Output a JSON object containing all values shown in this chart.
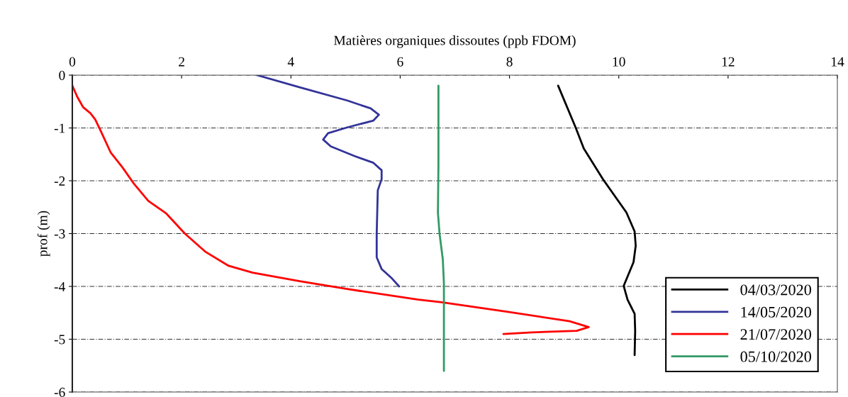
{
  "chart_data": {
    "type": "line",
    "xlabel": "Matières organiques dissoutes (ppb FDOM)",
    "ylabel": "prof (m)",
    "xlim": [
      0,
      14
    ],
    "xticks": [
      0,
      2,
      4,
      6,
      8,
      10,
      12,
      14
    ],
    "ylim": [
      -6,
      0
    ],
    "yticks": [
      -6,
      -5,
      -4,
      -3,
      -2,
      -1,
      0
    ],
    "grid": "y",
    "legend": "bottom right",
    "marker": "none",
    "line_style": "solid",
    "series": [
      {
        "name": "04/03/2020",
        "color": "#000000",
        "x": [
          8.89,
          9.21,
          9.36,
          9.71,
          10.14,
          10.29,
          10.31,
          10.27,
          10.09,
          10.16,
          10.29,
          10.3,
          10.29
        ],
        "values": [
          -0.2,
          -0.99,
          -1.39,
          -1.97,
          -2.6,
          -2.96,
          -3.23,
          -3.54,
          -3.99,
          -4.25,
          -4.52,
          -4.84,
          -5.3
        ]
      },
      {
        "name": "14/05/2020",
        "color": "#333399",
        "x": [
          3.38,
          4.16,
          5.03,
          5.46,
          5.61,
          5.51,
          5.03,
          4.68,
          4.59,
          4.73,
          5.16,
          5.51,
          5.66,
          5.66,
          5.59,
          5.57,
          5.57,
          5.66,
          5.85,
          5.98
        ],
        "values": [
          0,
          -0.23,
          -0.48,
          -0.63,
          -0.75,
          -0.86,
          -0.99,
          -1.1,
          -1.22,
          -1.35,
          -1.53,
          -1.66,
          -1.8,
          -1.97,
          -2.18,
          -3.0,
          -3.45,
          -3.67,
          -3.85,
          -4.0
        ]
      },
      {
        "name": "21/07/2020",
        "color": "#ff0000",
        "x": [
          0,
          0.09,
          0.2,
          0.33,
          0.42,
          0.53,
          0.7,
          0.92,
          1.13,
          1.39,
          1.72,
          2.06,
          2.43,
          2.86,
          3.3,
          4.16,
          5.03,
          6.33,
          6.76,
          7.97,
          9.1,
          9.45,
          9.23,
          8.41,
          7.89
        ],
        "values": [
          -0.2,
          -0.41,
          -0.61,
          -0.72,
          -0.84,
          -1.08,
          -1.46,
          -1.75,
          -2.06,
          -2.38,
          -2.62,
          -3.0,
          -3.34,
          -3.61,
          -3.74,
          -3.9,
          -4.05,
          -4.25,
          -4.3,
          -4.48,
          -4.66,
          -4.77,
          -4.84,
          -4.87,
          -4.9
        ]
      },
      {
        "name": "05/10/2020",
        "color": "#339966",
        "x": [
          6.7,
          6.7,
          6.69,
          6.72,
          6.78,
          6.8,
          6.8,
          6.8
        ],
        "values": [
          -0.2,
          -1.71,
          -2.6,
          -3.0,
          -3.49,
          -3.94,
          -4.84,
          -5.6
        ]
      }
    ]
  }
}
